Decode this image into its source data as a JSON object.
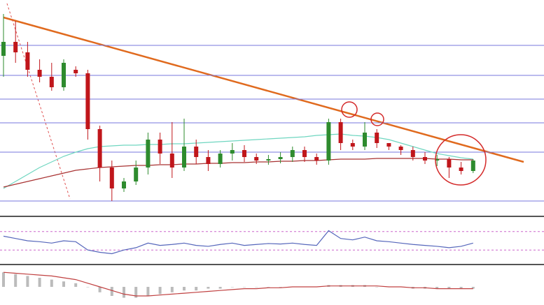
{
  "chart_data": [
    {
      "type": "candlestick",
      "open": [
        230,
        250,
        235,
        210,
        200,
        185,
        210,
        205,
        125,
        70,
        40,
        50,
        70,
        110,
        90,
        70,
        100,
        85,
        75,
        90,
        95,
        85,
        80,
        82,
        85,
        95,
        85,
        80,
        135,
        105,
        100,
        120,
        105,
        100,
        95,
        85,
        80,
        82,
        70,
        65
      ],
      "high": [
        290,
        280,
        250,
        225,
        220,
        225,
        215,
        210,
        130,
        80,
        55,
        80,
        120,
        120,
        135,
        140,
        110,
        95,
        95,
        105,
        102,
        90,
        88,
        92,
        100,
        100,
        90,
        140,
        140,
        110,
        135,
        125,
        105,
        102,
        100,
        92,
        88,
        85,
        78,
        82
      ],
      "low": [
        200,
        220,
        200,
        192,
        180,
        180,
        200,
        110,
        50,
        22,
        35,
        45,
        60,
        75,
        55,
        65,
        75,
        65,
        70,
        80,
        78,
        75,
        74,
        76,
        78,
        78,
        74,
        74,
        95,
        95,
        95,
        98,
        95,
        88,
        80,
        75,
        72,
        55,
        60,
        62
      ],
      "close": [
        250,
        235,
        210,
        200,
        185,
        220,
        205,
        125,
        70,
        40,
        50,
        70,
        110,
        90,
        70,
        100,
        85,
        75,
        90,
        95,
        85,
        80,
        82,
        85,
        95,
        85,
        80,
        135,
        105,
        100,
        120,
        105,
        100,
        95,
        85,
        80,
        82,
        70,
        65,
        80
      ],
      "up_color": "#2e8b2e",
      "down_color": "#c0161b",
      "ylim": [
        0,
        310
      ],
      "levels": [
        245,
        202,
        168,
        134,
        92,
        22
      ],
      "level_color": "#7777dd",
      "series": [
        {
          "color": "#6fd6c0",
          "values": [
            40,
            50,
            60,
            70,
            78,
            86,
            92,
            97,
            100,
            101,
            102,
            102,
            103,
            103,
            104,
            104,
            105,
            106,
            107,
            108,
            109,
            110,
            111,
            112,
            113,
            114,
            116,
            117,
            118,
            116,
            115,
            113,
            110,
            105,
            100,
            95,
            90,
            87,
            84,
            82
          ]
        },
        {
          "color": "#a83232",
          "values": [
            42,
            46,
            50,
            54,
            58,
            62,
            66,
            68,
            70,
            71,
            72,
            73,
            73,
            74,
            74,
            75,
            75,
            76,
            76,
            77,
            77,
            78,
            78,
            79,
            79,
            80,
            80,
            81,
            82,
            82,
            82,
            83,
            83,
            83,
            83,
            83,
            82,
            82,
            81,
            81
          ]
        }
      ]
    },
    {
      "type": "line",
      "ylim": [
        0,
        100
      ],
      "levels": [
        70,
        30
      ],
      "level_color": "#cc66cc",
      "series": [
        {
          "color": "#5566bb",
          "values": [
            60,
            55,
            50,
            48,
            45,
            50,
            48,
            30,
            25,
            22,
            30,
            35,
            45,
            40,
            42,
            45,
            40,
            38,
            42,
            45,
            40,
            42,
            44,
            43,
            45,
            42,
            40,
            72,
            55,
            52,
            58,
            50,
            48,
            45,
            42,
            40,
            38,
            35,
            38,
            45
          ]
        }
      ]
    },
    {
      "type": "macd",
      "ylim": [
        -10,
        10
      ],
      "histogram": [
        8,
        7,
        6,
        5,
        4,
        3,
        2,
        0,
        -3,
        -5,
        -6,
        -6,
        -5,
        -4,
        -3,
        -2,
        -2,
        -1,
        -1,
        0,
        0,
        0,
        0,
        0,
        0,
        0,
        0,
        1,
        1,
        1,
        1,
        0,
        0,
        0,
        -1,
        -1,
        -1,
        -1,
        -1,
        -1
      ],
      "histogram_color": "#bbbbbb",
      "series": [
        {
          "color": "#c04040",
          "values": [
            8,
            7.5,
            7,
            6.5,
            6,
            5,
            4,
            2,
            0,
            -2,
            -4,
            -5,
            -5,
            -4.5,
            -4,
            -3.5,
            -3,
            -2.5,
            -2,
            -1.5,
            -1,
            -1,
            -0.5,
            -0.5,
            0,
            0,
            0,
            0.5,
            0.5,
            0.5,
            0.5,
            0.5,
            0,
            0,
            -0.5,
            -0.5,
            -1,
            -1,
            -1,
            -1
          ]
        }
      ]
    }
  ]
}
